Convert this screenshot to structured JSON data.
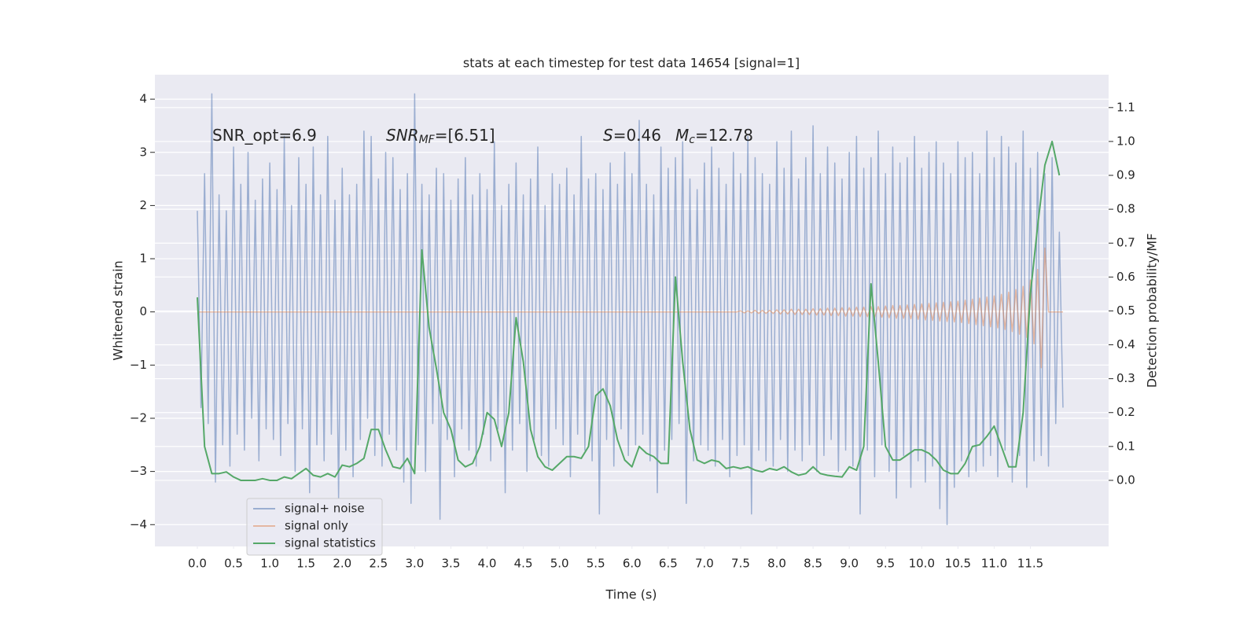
{
  "chart_data": {
    "type": "line",
    "title": "stats at each timestep for test data 14654 [signal=1]",
    "xlabel": "Time (s)",
    "ylabel": "Whitened strain",
    "y2label": "Detection probability/MF",
    "annotations": [
      [
        {
          "text": "SNR_opt=6.9"
        }
      ],
      [
        {
          "text": "SNR",
          "italic": true
        },
        {
          "text": "MF",
          "italic": true,
          "sub": true
        },
        {
          "text": "=[6.51]"
        }
      ],
      [
        {
          "text": "S",
          "italic": true
        },
        {
          "text": "=0.46"
        }
      ],
      [
        {
          "text": "M",
          "italic": true
        },
        {
          "text": "c",
          "italic": true,
          "sub": true
        },
        {
          "text": "=12.78"
        }
      ]
    ],
    "grid": true,
    "legend": "lower left",
    "xlim": [
      -0.586,
      12.58
    ],
    "ylim": [
      -4.41,
      4.46
    ],
    "y2lim": [
      -0.195,
      1.197
    ],
    "xticks": [
      {
        "value": 0,
        "label": "0.0"
      },
      0.5,
      {
        "value": 1,
        "label": "1.0"
      },
      1.5,
      {
        "value": 2,
        "label": "2.0"
      },
      2.5,
      {
        "value": 3,
        "label": "3.0"
      },
      3.5,
      {
        "value": 4,
        "label": "4.0"
      },
      4.5,
      {
        "value": 5,
        "label": "5.0"
      },
      5.5,
      {
        "value": 6,
        "label": "6.0"
      },
      6.5,
      {
        "value": 7,
        "label": "7.0"
      },
      7.5,
      {
        "value": 8,
        "label": "8.0"
      },
      8.5,
      {
        "value": 9,
        "label": "9.0"
      },
      9.5,
      {
        "value": 10,
        "label": "10.0"
      },
      10.5,
      {
        "value": 11,
        "label": "11.0"
      },
      11.5
    ],
    "yticks": [
      {
        "value": -4,
        "label": "−4"
      },
      {
        "value": -3,
        "label": "−3"
      },
      {
        "value": -2,
        "label": "−2"
      },
      {
        "value": -1,
        "label": "−1"
      },
      0,
      1,
      2,
      3,
      4
    ],
    "y2ticks": [
      {
        "value": 0,
        "label": "0.0"
      },
      0.1,
      0.2,
      0.3,
      0.4,
      0.5,
      0.6,
      0.7,
      0.8,
      0.9,
      {
        "value": 1,
        "label": "1.0"
      },
      1.1
    ],
    "x": [
      0,
      0.05,
      0.1,
      0.15,
      0.2,
      0.25,
      0.3,
      0.35,
      0.4,
      0.45,
      0.5,
      0.55,
      0.6,
      0.65,
      0.7,
      0.75,
      0.8,
      0.85,
      0.9,
      0.95,
      1,
      1.05,
      1.1,
      1.15,
      1.2,
      1.25,
      1.3,
      1.35,
      1.4,
      1.45,
      1.5,
      1.55,
      1.6,
      1.65,
      1.7,
      1.75,
      1.8,
      1.85,
      1.9,
      1.95,
      2,
      2.05,
      2.1,
      2.15,
      2.2,
      2.25,
      2.3,
      2.35,
      2.4,
      2.45,
      2.5,
      2.55,
      2.6,
      2.65,
      2.7,
      2.75,
      2.8,
      2.85,
      2.9,
      2.95,
      3,
      3.05,
      3.1,
      3.15,
      3.2,
      3.25,
      3.3,
      3.35,
      3.4,
      3.45,
      3.5,
      3.55,
      3.6,
      3.65,
      3.7,
      3.75,
      3.8,
      3.85,
      3.9,
      3.95,
      4,
      4.05,
      4.1,
      4.15,
      4.2,
      4.25,
      4.3,
      4.35,
      4.4,
      4.45,
      4.5,
      4.55,
      4.6,
      4.65,
      4.7,
      4.75,
      4.8,
      4.85,
      4.9,
      4.95,
      5,
      5.05,
      5.1,
      5.15,
      5.2,
      5.25,
      5.3,
      5.35,
      5.4,
      5.45,
      5.5,
      5.55,
      5.6,
      5.65,
      5.7,
      5.75,
      5.8,
      5.85,
      5.9,
      5.95,
      6,
      6.05,
      6.1,
      6.15,
      6.2,
      6.25,
      6.3,
      6.35,
      6.4,
      6.45,
      6.5,
      6.55,
      6.6,
      6.65,
      6.7,
      6.75,
      6.8,
      6.85,
      6.9,
      6.95,
      7,
      7.05,
      7.1,
      7.15,
      7.2,
      7.25,
      7.3,
      7.35,
      7.4,
      7.45,
      7.5,
      7.55,
      7.6,
      7.65,
      7.7,
      7.75,
      7.8,
      7.85,
      7.9,
      7.95,
      8,
      8.05,
      8.1,
      8.15,
      8.2,
      8.25,
      8.3,
      8.35,
      8.4,
      8.45,
      8.5,
      8.55,
      8.6,
      8.65,
      8.7,
      8.75,
      8.8,
      8.85,
      8.9,
      8.95,
      9,
      9.05,
      9.1,
      9.15,
      9.2,
      9.25,
      9.3,
      9.35,
      9.4,
      9.45,
      9.5,
      9.55,
      9.6,
      9.65,
      9.7,
      9.75,
      9.8,
      9.85,
      9.9,
      9.95,
      10,
      10.05,
      10.1,
      10.15,
      10.2,
      10.25,
      10.3,
      10.35,
      10.4,
      10.45,
      10.5,
      10.55,
      10.6,
      10.65,
      10.7,
      10.75,
      10.8,
      10.85,
      10.9,
      10.95,
      11,
      11.05,
      11.1,
      11.15,
      11.2,
      11.25,
      11.3,
      11.35,
      11.4,
      11.45,
      11.5,
      11.55,
      11.6,
      11.65,
      11.7,
      11.75,
      11.8,
      11.85,
      11.9,
      11.95
    ],
    "series": [
      {
        "name": "signal+ noise",
        "color": "#4c72b0",
        "opacity": 0.5,
        "values": [
          1.9,
          -1.8,
          2.6,
          -2.1,
          4.1,
          -3.2,
          2.2,
          -2.5,
          1.9,
          -2.9,
          3.1,
          -2.3,
          2.4,
          -2.6,
          3.0,
          -2.0,
          2.1,
          -2.8,
          2.5,
          -2.2,
          2.8,
          -2.4,
          2.3,
          -2.7,
          3.3,
          -2.1,
          2.0,
          -3.0,
          2.9,
          -2.2,
          2.4,
          -3.4,
          3.1,
          -2.5,
          2.2,
          -2.8,
          3.3,
          -2.3,
          2.1,
          -3.5,
          2.7,
          -2.6,
          2.2,
          -3.1,
          2.4,
          -2.4,
          3.4,
          -2.0,
          3.3,
          -2.7,
          2.5,
          -2.9,
          3.0,
          -2.3,
          2.9,
          -2.6,
          2.3,
          -3.2,
          2.6,
          -3.6,
          4.1,
          -2.5,
          2.4,
          -3.0,
          2.2,
          -2.1,
          2.7,
          -3.9,
          2.6,
          -2.4,
          2.1,
          -3.1,
          2.5,
          -2.2,
          2.9,
          -2.6,
          2.2,
          -2.9,
          2.6,
          -2.3,
          2.3,
          -2.8,
          3.2,
          -2.2,
          2.0,
          -3.4,
          2.4,
          -2.6,
          2.8,
          -2.1,
          2.2,
          -3.0,
          2.5,
          -2.4,
          3.1,
          -2.7,
          2.0,
          -2.9,
          2.6,
          -2.2,
          2.4,
          -2.5,
          2.7,
          -3.1,
          2.2,
          -2.3,
          3.3,
          -2.6,
          2.5,
          -2.8,
          2.6,
          -3.8,
          2.3,
          -2.4,
          2.8,
          -2.9,
          2.4,
          -2.2,
          3.0,
          -2.7,
          2.6,
          -2.5,
          3.6,
          -2.3,
          2.4,
          -2.8,
          2.2,
          -3.4,
          3.1,
          -2.6,
          2.7,
          -2.4,
          2.9,
          -2.1,
          3.2,
          -3.6,
          2.5,
          -2.8,
          2.3,
          -2.5,
          2.8,
          -2.6,
          3.1,
          -2.9,
          2.7,
          -2.4,
          2.4,
          -3.1,
          3.0,
          -2.7,
          2.6,
          -2.5,
          3.3,
          -3.8,
          2.9,
          -2.6,
          2.6,
          -2.8,
          2.4,
          -2.9,
          3.2,
          -2.4,
          2.7,
          -3.0,
          3.4,
          -2.6,
          2.5,
          -2.8,
          2.9,
          -2.5,
          3.5,
          -3.0,
          2.6,
          -2.7,
          3.1,
          -2.4,
          2.8,
          -3.0,
          2.5,
          -2.6,
          3.0,
          -2.9,
          3.3,
          -3.8,
          2.7,
          -2.6,
          2.9,
          -3.1,
          3.4,
          -2.5,
          2.6,
          -3.0,
          3.1,
          -3.5,
          2.8,
          -2.7,
          2.9,
          -3.3,
          3.3,
          -2.8,
          2.7,
          -3.2,
          3.0,
          -2.9,
          3.2,
          -3.7,
          2.8,
          -4.0,
          2.6,
          -3.3,
          3.2,
          -2.8,
          2.9,
          -3.1,
          3.0,
          -3.0,
          2.6,
          -2.9,
          3.4,
          -2.7,
          2.9,
          -3.1,
          3.3,
          -2.6,
          3.1,
          -3.2,
          2.8,
          -2.7,
          3.4,
          -3.3,
          2.7,
          -2.8,
          3.0,
          -2.7,
          2.6,
          -2.9,
          2.9,
          -2.1,
          1.5,
          -1.8
        ]
      },
      {
        "name": "signal only",
        "color": "#dd8452",
        "opacity": 0.5,
        "values": [
          0,
          0,
          0,
          0,
          0,
          0,
          0,
          0,
          0,
          0,
          0,
          0,
          0,
          0,
          0,
          0,
          0,
          0,
          0,
          0,
          0,
          0,
          0,
          0,
          0,
          0,
          0,
          0,
          0,
          0,
          0,
          0,
          0,
          0,
          0,
          0,
          0,
          0,
          0,
          0,
          0,
          0,
          0,
          0,
          0,
          0,
          0,
          0,
          0,
          0,
          0,
          0,
          0,
          0,
          0,
          0,
          0,
          0,
          0,
          0,
          0,
          0,
          0,
          0,
          0,
          0,
          0,
          0,
          0,
          0,
          0,
          0,
          0,
          0,
          0,
          0,
          0,
          0,
          0,
          0,
          0,
          0,
          0,
          0,
          0,
          0,
          0,
          0,
          0,
          0,
          0,
          0,
          0,
          0,
          0,
          0,
          0,
          0,
          0,
          0,
          0,
          0,
          0,
          0,
          0,
          0,
          0,
          0,
          0,
          0,
          0,
          0,
          0,
          0,
          0,
          0,
          0,
          0,
          0,
          0,
          0,
          0,
          0,
          0,
          0,
          0,
          0,
          0,
          0,
          0,
          0,
          0,
          0,
          0,
          0,
          0,
          0,
          0,
          0,
          0,
          0,
          0,
          0,
          0,
          0,
          0,
          0,
          0,
          0,
          0,
          0.02,
          -0.02,
          0.02,
          -0.02,
          0.03,
          -0.03,
          0.03,
          -0.03,
          0.03,
          -0.03,
          0.04,
          -0.04,
          0.04,
          -0.04,
          0.05,
          -0.05,
          0.05,
          -0.05,
          0.05,
          -0.05,
          0.06,
          -0.06,
          0.06,
          -0.06,
          0.07,
          -0.07,
          0.07,
          -0.07,
          0.08,
          -0.08,
          0.08,
          -0.08,
          0.09,
          -0.09,
          0.09,
          -0.09,
          0.1,
          -0.1,
          0.1,
          -0.1,
          0.11,
          -0.11,
          0.12,
          -0.12,
          0.12,
          -0.12,
          0.13,
          -0.13,
          0.14,
          -0.14,
          0.15,
          -0.15,
          0.16,
          -0.16,
          0.17,
          -0.17,
          0.18,
          -0.18,
          0.19,
          -0.19,
          0.2,
          -0.2,
          0.22,
          -0.22,
          0.24,
          -0.24,
          0.26,
          -0.26,
          0.28,
          -0.28,
          0.3,
          -0.3,
          0.33,
          -0.33,
          0.37,
          -0.37,
          0.42,
          -0.42,
          0.48,
          -0.48,
          0.6,
          -0.6,
          0.8,
          -1.05,
          1.2,
          0,
          0,
          0,
          0,
          0
        ]
      },
      {
        "name": "signal statistics",
        "color": "#55a868",
        "axis": "y2",
        "x": [
          0,
          0.1,
          0.2,
          0.3,
          0.4,
          0.5,
          0.6,
          0.7,
          0.8,
          0.9,
          1,
          1.1,
          1.2,
          1.3,
          1.4,
          1.5,
          1.6,
          1.7,
          1.8,
          1.9,
          2,
          2.1,
          2.2,
          2.3,
          2.4,
          2.5,
          2.6,
          2.7,
          2.8,
          2.9,
          3,
          3.1,
          3.2,
          3.3,
          3.4,
          3.5,
          3.6,
          3.7,
          3.8,
          3.9,
          4,
          4.1,
          4.2,
          4.3,
          4.4,
          4.5,
          4.6,
          4.7,
          4.8,
          4.9,
          5,
          5.1,
          5.2,
          5.3,
          5.4,
          5.5,
          5.6,
          5.7,
          5.8,
          5.9,
          6,
          6.1,
          6.2,
          6.3,
          6.4,
          6.5,
          6.6,
          6.7,
          6.8,
          6.9,
          7,
          7.1,
          7.2,
          7.3,
          7.4,
          7.5,
          7.6,
          7.7,
          7.8,
          7.9,
          8,
          8.1,
          8.2,
          8.3,
          8.4,
          8.5,
          8.6,
          8.7,
          8.8,
          8.9,
          9,
          9.1,
          9.2,
          9.3,
          9.4,
          9.5,
          9.6,
          9.7,
          9.8,
          9.9,
          10,
          10.1,
          10.2,
          10.3,
          10.4,
          10.5,
          10.6,
          10.7,
          10.8,
          10.9,
          11,
          11.1,
          11.2,
          11.3,
          11.4,
          11.5,
          11.6,
          11.7,
          11.8,
          11.9
        ],
        "values": [
          0.54,
          0.1,
          0.02,
          0.02,
          0.025,
          0.01,
          0.0,
          0.0,
          0.0,
          0.005,
          0.0,
          0.0,
          0.01,
          0.005,
          0.02,
          0.035,
          0.015,
          0.01,
          0.02,
          0.01,
          0.045,
          0.04,
          0.05,
          0.065,
          0.15,
          0.15,
          0.09,
          0.04,
          0.035,
          0.065,
          0.02,
          0.68,
          0.45,
          0.33,
          0.2,
          0.15,
          0.06,
          0.04,
          0.05,
          0.1,
          0.2,
          0.18,
          0.1,
          0.2,
          0.48,
          0.35,
          0.15,
          0.07,
          0.04,
          0.03,
          0.05,
          0.07,
          0.07,
          0.065,
          0.1,
          0.25,
          0.27,
          0.22,
          0.12,
          0.06,
          0.04,
          0.1,
          0.08,
          0.07,
          0.05,
          0.05,
          0.6,
          0.35,
          0.15,
          0.06,
          0.05,
          0.06,
          0.055,
          0.035,
          0.04,
          0.035,
          0.04,
          0.03,
          0.025,
          0.035,
          0.03,
          0.04,
          0.025,
          0.015,
          0.02,
          0.04,
          0.02,
          0.015,
          0.012,
          0.01,
          0.04,
          0.03,
          0.1,
          0.58,
          0.35,
          0.1,
          0.06,
          0.06,
          0.075,
          0.09,
          0.09,
          0.08,
          0.06,
          0.03,
          0.02,
          0.02,
          0.05,
          0.1,
          0.105,
          0.13,
          0.16,
          0.1,
          0.04,
          0.04,
          0.2,
          0.55,
          0.75,
          0.93,
          1.0,
          0.9
        ]
      }
    ]
  }
}
